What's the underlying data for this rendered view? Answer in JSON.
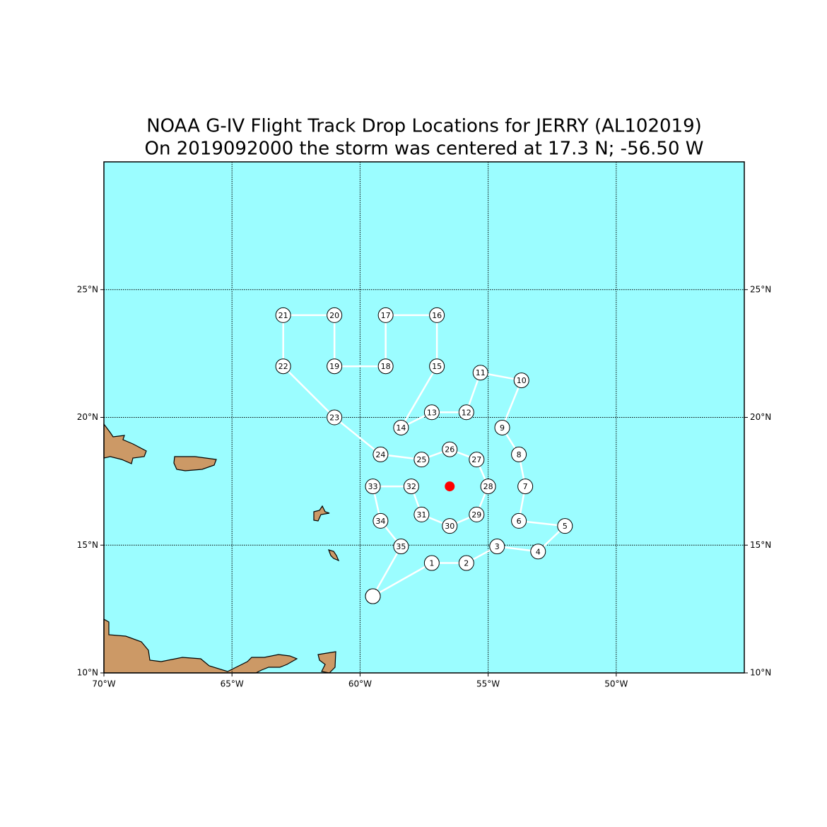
{
  "chart_data": {
    "type": "track",
    "title": "NOAA G-IV Flight Track Drop Locations for JERRY (AL102019)",
    "subtitle": "On 2019092000 the storm was centered at 17.3 N; -56.50 W",
    "xlim": [
      -70,
      -45
    ],
    "ylim": [
      10,
      30
    ],
    "xticks": [
      {
        "value": -70,
        "label": "70°W"
      },
      {
        "value": -65,
        "label": "65°W"
      },
      {
        "value": -60,
        "label": "60°W"
      },
      {
        "value": -55,
        "label": "55°W"
      },
      {
        "value": -50,
        "label": "50°W"
      }
    ],
    "yticks": [
      {
        "value": 10,
        "label": "10°N"
      },
      {
        "value": 15,
        "label": "15°N"
      },
      {
        "value": 20,
        "label": "20°N"
      },
      {
        "value": 25,
        "label": "25°N"
      }
    ],
    "grid": true,
    "ocean_color": "#9bfdff",
    "land_color": "#cc9966",
    "track": {
      "color": "#ffffff",
      "x": [
        -59.5,
        -57.2,
        -55.85,
        -54.65,
        -53.05,
        -52.0,
        -53.8,
        -53.55,
        -53.8,
        -54.45,
        -53.7,
        -55.3,
        -55.85,
        -57.2,
        -58.4,
        -57.0,
        -57.0,
        -59.0,
        -59.0,
        -61.0,
        -61.0,
        -63.0,
        -63.0,
        -61.0,
        -59.2,
        -57.6,
        -56.5,
        -55.45,
        -55.0,
        -55.45,
        -56.5,
        -57.6,
        -58.0,
        -59.5,
        -59.2,
        -58.4,
        -59.5
      ],
      "y": [
        13.0,
        14.3,
        14.3,
        14.95,
        14.75,
        15.75,
        15.95,
        17.3,
        18.55,
        19.6,
        21.45,
        21.75,
        20.2,
        20.2,
        19.6,
        22.0,
        24.0,
        24.0,
        22.0,
        22.0,
        24.0,
        24.0,
        22.0,
        20.0,
        18.55,
        18.35,
        18.75,
        18.35,
        17.3,
        16.2,
        15.75,
        16.2,
        17.3,
        17.3,
        15.95,
        14.95,
        13.0
      ],
      "labels": [
        null,
        "1",
        "2",
        "3",
        "4",
        "5",
        "6",
        "7",
        "8",
        "9",
        "10",
        "11",
        "12",
        "13",
        "14",
        "15",
        "16",
        "17",
        "18",
        "19",
        "20",
        "21",
        "22",
        "23",
        "24",
        "25",
        "26",
        "27",
        "28",
        "29",
        "30",
        "31",
        "32",
        "33",
        "34",
        "35",
        null
      ]
    },
    "storm_center": {
      "x": -56.5,
      "y": 17.3,
      "color": "#ff0000"
    }
  }
}
